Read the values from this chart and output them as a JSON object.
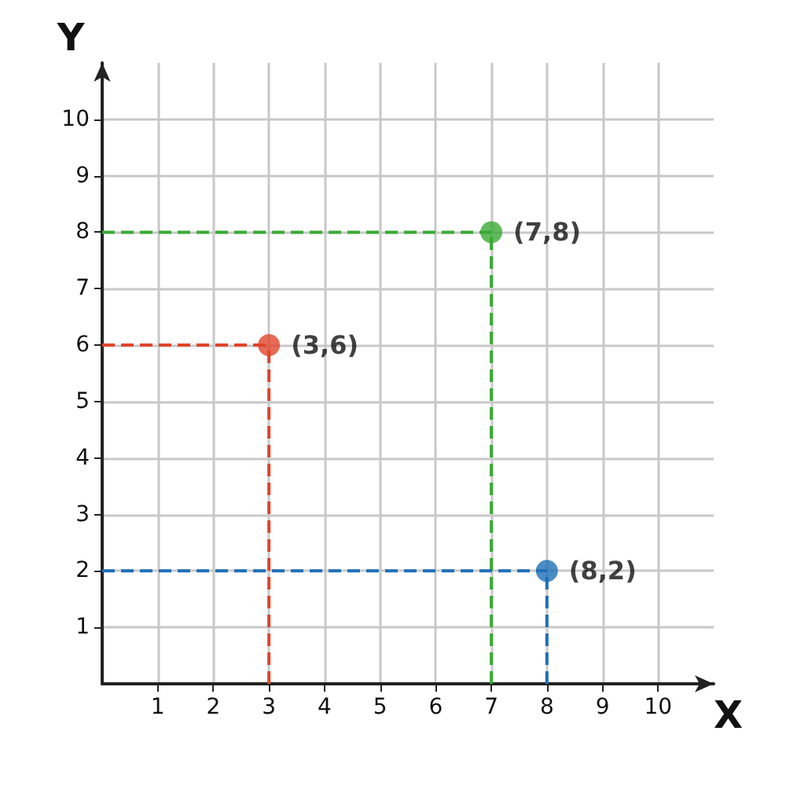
{
  "chart_data": {
    "type": "scatter",
    "xlabel": "X",
    "ylabel": "Y",
    "series": [
      {
        "type": "line",
        "x": [
          3,
          3
        ],
        "values": [
          0,
          6
        ],
        "color": "#e0452a",
        "line_style": "dashed",
        "marker": "none"
      },
      {
        "type": "line",
        "x": [
          0,
          3
        ],
        "values": [
          6,
          6
        ],
        "color": "#e0452a",
        "line_style": "dashed",
        "marker": "none"
      },
      {
        "type": "line",
        "x": [
          7,
          7
        ],
        "values": [
          0,
          8
        ],
        "color": "#3aaa35",
        "line_style": "dashed",
        "marker": "none"
      },
      {
        "type": "line",
        "x": [
          0,
          7
        ],
        "values": [
          8,
          8
        ],
        "color": "#3aaa35",
        "line_style": "dashed",
        "marker": "none"
      },
      {
        "type": "line",
        "x": [
          8,
          8
        ],
        "values": [
          0,
          2
        ],
        "color": "#1f6fb8",
        "line_style": "dashed",
        "marker": "none"
      },
      {
        "type": "line",
        "x": [
          0,
          8
        ],
        "values": [
          2,
          2
        ],
        "color": "#1f6fb8",
        "line_style": "dashed",
        "marker": "none"
      },
      {
        "x": [
          3,
          7,
          8
        ],
        "values": [
          6,
          8,
          2
        ],
        "colors": [
          "#e0452a",
          "#3aaa35",
          "#1f6fb8"
        ],
        "marker": "circle"
      }
    ],
    "annotations": [
      {
        "text": "(3,6)",
        "x": 3,
        "y": 6
      },
      {
        "text": "(7,8)",
        "x": 7,
        "y": 8
      },
      {
        "text": "(8,2)",
        "x": 8,
        "y": 2
      }
    ],
    "xlim": [
      0,
      11
    ],
    "ylim": [
      0,
      11
    ],
    "xticks": [
      1,
      2,
      3,
      4,
      5,
      6,
      7,
      8,
      9,
      10
    ],
    "yticks": [
      1,
      2,
      3,
      4,
      5,
      6,
      7,
      8,
      9,
      10
    ],
    "grid": true
  }
}
